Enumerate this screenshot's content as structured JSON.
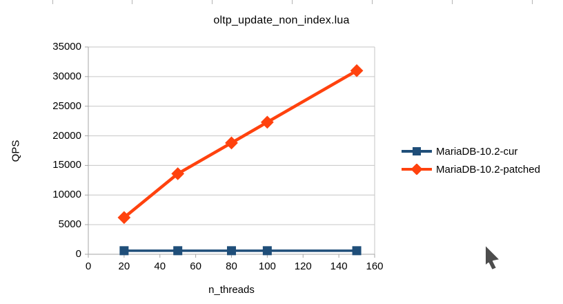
{
  "window": {
    "title_label": "oltp_update_non_index.lua"
  },
  "chart_data": {
    "type": "line",
    "title": "oltp_update_non_index.lua",
    "xlabel": "n_threads",
    "ylabel": "QPS",
    "x": [
      20,
      50,
      80,
      100,
      150
    ],
    "series": [
      {
        "name": "MariaDB-10.2-cur",
        "color": "#1F4E79",
        "marker": "square",
        "line_width": 3.5,
        "values": [
          600,
          600,
          600,
          600,
          600
        ]
      },
      {
        "name": "MariaDB-10.2-patched",
        "color": "#FF420E",
        "marker": "diamond",
        "line_width": 4.5,
        "values": [
          6200,
          13600,
          18800,
          22300,
          31000
        ]
      }
    ],
    "xlim": [
      0,
      160
    ],
    "ylim": [
      0,
      35000
    ],
    "x_ticks": [
      0,
      20,
      40,
      60,
      80,
      100,
      120,
      140,
      160
    ],
    "y_ticks": [
      0,
      5000,
      10000,
      15000,
      20000,
      25000,
      30000,
      35000
    ],
    "grid": "horizontal",
    "grid_color": "#c6c6c6",
    "axis_color": "#a6a6a6",
    "legend_position": "right"
  }
}
